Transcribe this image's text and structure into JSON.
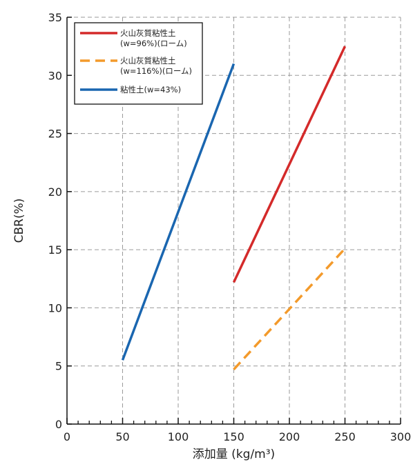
{
  "chart_data": {
    "type": "line",
    "xlabel": "添加量 (kg/m³)",
    "ylabel": "CBR(%)",
    "xlim": [
      0,
      300
    ],
    "ylim": [
      0,
      35
    ],
    "xticks": [
      0,
      50,
      100,
      150,
      200,
      250,
      300
    ],
    "yticks": [
      0,
      5,
      10,
      15,
      20,
      25,
      30,
      35
    ],
    "x_minor_step": 10,
    "grid": true,
    "grid_style": "dashed",
    "legend_position": "top-left",
    "series": [
      {
        "name_lines": [
          "火山灰質粘性土",
          "(w=96%)(ローム)"
        ],
        "color": "#d42a2a",
        "dash": "solid",
        "x": [
          150,
          250
        ],
        "y": [
          12.2,
          32.5
        ]
      },
      {
        "name_lines": [
          "火山灰質粘性土",
          "(w=116%)(ローム)"
        ],
        "color": "#f39a2b",
        "dash": "dashed",
        "x": [
          150,
          250
        ],
        "y": [
          4.7,
          15.1
        ]
      },
      {
        "name_lines": [
          "粘性土(w=43%)"
        ],
        "color": "#1a66b0",
        "dash": "solid",
        "x": [
          50,
          150
        ],
        "y": [
          5.5,
          31.0
        ]
      }
    ]
  }
}
